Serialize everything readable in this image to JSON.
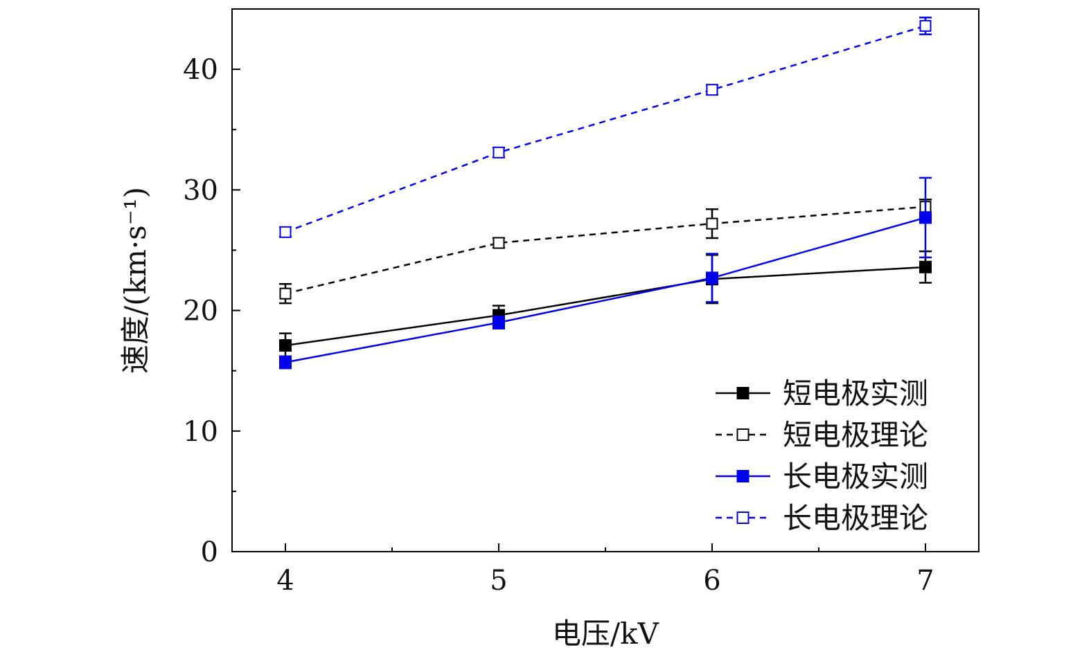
{
  "chart_data": {
    "type": "line",
    "xlabel": "电压/kV",
    "ylabel": "速度/(km·s⁻¹)",
    "x": [
      4,
      5,
      6,
      7
    ],
    "xlim": [
      3.75,
      7.25
    ],
    "ylim": [
      0,
      45
    ],
    "xticks": [
      "4",
      "5",
      "6",
      "7"
    ],
    "yticks": [
      "0",
      "10",
      "20",
      "30",
      "40"
    ],
    "legend_position": "bottom-right",
    "series": [
      {
        "name": "短电极实测",
        "color": "#000000",
        "dashed": false,
        "filled": true,
        "values": [
          17.1,
          19.6,
          22.6,
          23.6
        ],
        "errors": [
          1.0,
          0.8,
          2.0,
          1.3
        ]
      },
      {
        "name": "短电极理论",
        "color": "#000000",
        "dashed": true,
        "filled": false,
        "values": [
          21.4,
          25.6,
          27.2,
          28.6
        ],
        "errors": [
          0.8,
          0.4,
          1.2,
          0.6
        ]
      },
      {
        "name": "长电极实测",
        "color": "#0000ee",
        "dashed": false,
        "filled": true,
        "values": [
          15.7,
          19.0,
          22.7,
          27.7
        ],
        "errors": [
          0.5,
          0.5,
          2.0,
          3.3
        ]
      },
      {
        "name": "长电极理论",
        "color": "#0000ee",
        "dashed": true,
        "filled": false,
        "values": [
          26.5,
          33.1,
          38.3,
          43.6
        ],
        "errors": [
          0.4,
          0.4,
          0.4,
          0.7
        ]
      }
    ]
  }
}
